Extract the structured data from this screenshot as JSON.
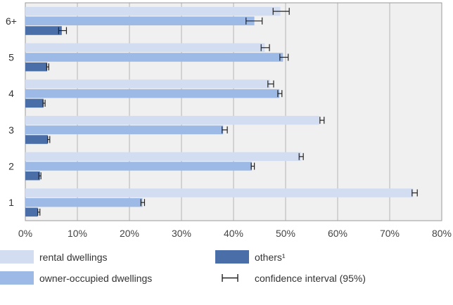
{
  "chart_data": {
    "type": "bar",
    "orientation": "horizontal",
    "categories": [
      "1",
      "2",
      "3",
      "4",
      "5",
      "6+"
    ],
    "x_ticks": [
      "0%",
      "10%",
      "20%",
      "30%",
      "40%",
      "50%",
      "60%",
      "70%",
      "80%"
    ],
    "xlim": [
      0,
      80
    ],
    "grid": true,
    "legend_position": "bottom",
    "series": [
      {
        "name": "rental dwellings",
        "color": "#d2ddf2",
        "values": [
          74.5,
          53.0,
          56.5,
          47.0,
          46.0,
          49.0
        ],
        "ci": [
          [
            74.3,
            75.3
          ],
          [
            52.6,
            53.4
          ],
          [
            56.6,
            57.4
          ],
          [
            46.6,
            47.7
          ],
          [
            45.3,
            46.9
          ],
          [
            47.6,
            50.7
          ]
        ]
      },
      {
        "name": "owner-occupied dwellings",
        "color": "#9db9e6",
        "values": [
          22.5,
          43.5,
          38.0,
          48.8,
          49.5,
          44.0
        ],
        "ci": [
          [
            22.2,
            22.9
          ],
          [
            43.4,
            44.0
          ],
          [
            37.8,
            38.8
          ],
          [
            48.5,
            49.3
          ],
          [
            48.9,
            50.5
          ],
          [
            42.4,
            45.5
          ]
        ]
      },
      {
        "name": "others¹",
        "color": "#4a6ea8",
        "values": [
          2.4,
          2.8,
          4.3,
          3.5,
          4.2,
          7.0
        ],
        "ci": [
          [
            2.4,
            2.8
          ],
          [
            2.6,
            3.0
          ],
          [
            4.3,
            4.7
          ],
          [
            3.4,
            3.8
          ],
          [
            4.1,
            4.5
          ],
          [
            6.4,
            7.9
          ]
        ]
      }
    ]
  },
  "legend": {
    "rental": "rental dwellings",
    "owner": "owner-occupied dwellings",
    "others": "others¹",
    "ci": "confidence interval (95%)"
  }
}
